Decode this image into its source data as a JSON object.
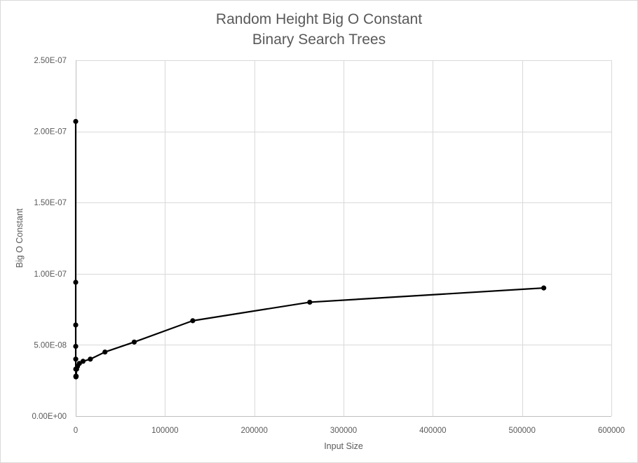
{
  "chart_data": {
    "type": "scatter",
    "title": "Random Height Big O Constant",
    "subtitle": "Binary Search Trees",
    "xlabel": "Input Size",
    "ylabel": "Big O Constant",
    "xlim": [
      0,
      600000
    ],
    "ylim": [
      0,
      2.5e-07
    ],
    "x_ticks": [
      0,
      100000,
      200000,
      300000,
      400000,
      500000,
      600000
    ],
    "x_tick_labels": [
      "0",
      "100000",
      "200000",
      "300000",
      "400000",
      "500000",
      "600000"
    ],
    "y_ticks": [
      0,
      5e-08,
      1e-07,
      1.5e-07,
      2e-07,
      2.5e-07
    ],
    "y_tick_labels": [
      "0.00E+00",
      "5.00E-08",
      "1.00E-07",
      "1.50E-07",
      "2.00E-07",
      "2.50E-07"
    ],
    "grid": true,
    "legend": false,
    "series": [
      {
        "color": "#000000",
        "markers": true,
        "lines": true,
        "x": [
          2,
          4,
          8,
          16,
          32,
          64,
          128,
          256,
          512,
          1024,
          2048,
          4096,
          8192,
          16384,
          32768,
          65536,
          131072,
          262144,
          524288
        ],
        "y": [
          2.07e-07,
          9.4e-08,
          6.4e-08,
          4.9e-08,
          4e-08,
          3.3e-08,
          2.8e-08,
          2.75e-08,
          2.8e-08,
          3.3e-08,
          3.5e-08,
          3.7e-08,
          3.85e-08,
          4e-08,
          4.5e-08,
          5.2e-08,
          6.7e-08,
          8e-08,
          9e-08
        ]
      }
    ]
  }
}
